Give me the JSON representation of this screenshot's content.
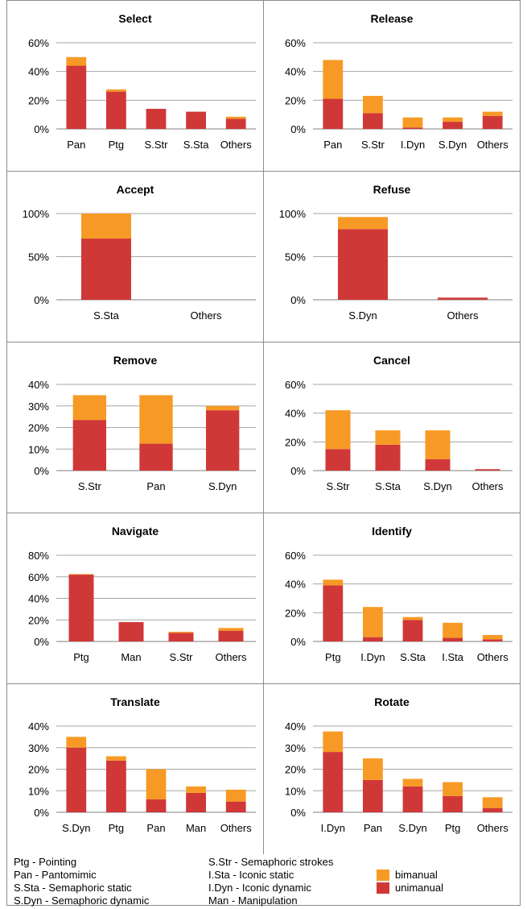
{
  "colors": {
    "unimanual": "#d03838",
    "bimanual": "#f79a25",
    "grid": "#a6a6a6",
    "border": "#8c8c8c"
  },
  "chart_data": [
    {
      "type": "bar",
      "stacked": true,
      "title": "Select",
      "yticks": [
        "0%",
        "20%",
        "40%",
        "60%"
      ],
      "ylim": [
        0,
        60
      ],
      "categories": [
        "Pan",
        "Ptg",
        "S.Str",
        "S.Sta",
        "Others"
      ],
      "series": [
        {
          "name": "unimanual",
          "values": [
            44,
            26,
            14,
            12,
            7
          ]
        },
        {
          "name": "bimanual",
          "values": [
            6,
            1.5,
            0,
            0,
            1.5
          ]
        }
      ]
    },
    {
      "type": "bar",
      "stacked": true,
      "title": "Release",
      "yticks": [
        "0%",
        "20%",
        "40%",
        "60%"
      ],
      "ylim": [
        0,
        60
      ],
      "categories": [
        "Pan",
        "S.Str",
        "I.Dyn",
        "S.Dyn",
        "Others"
      ],
      "series": [
        {
          "name": "unimanual",
          "values": [
            21,
            11,
            1,
            5,
            9
          ]
        },
        {
          "name": "bimanual",
          "values": [
            27,
            12,
            7,
            3,
            3
          ]
        }
      ]
    },
    {
      "type": "bar",
      "stacked": true,
      "title": "Accept",
      "yticks": [
        "0%",
        "50%",
        "100%"
      ],
      "ylim": [
        0,
        100
      ],
      "categories": [
        "S.Sta",
        "Others"
      ],
      "series": [
        {
          "name": "unimanual",
          "values": [
            71,
            0
          ]
        },
        {
          "name": "bimanual",
          "values": [
            29,
            0
          ]
        }
      ]
    },
    {
      "type": "bar",
      "stacked": true,
      "title": "Refuse",
      "yticks": [
        "0%",
        "50%",
        "100%"
      ],
      "ylim": [
        0,
        100
      ],
      "categories": [
        "S.Dyn",
        "Others"
      ],
      "series": [
        {
          "name": "unimanual",
          "values": [
            82,
            2.5
          ]
        },
        {
          "name": "bimanual",
          "values": [
            14,
            0
          ]
        }
      ]
    },
    {
      "type": "bar",
      "stacked": true,
      "title": "Remove",
      "yticks": [
        "0%",
        "10%",
        "20%",
        "30%",
        "40%"
      ],
      "ylim": [
        0,
        40
      ],
      "categories": [
        "S.Str",
        "Pan",
        "S.Dyn"
      ],
      "series": [
        {
          "name": "unimanual",
          "values": [
            23.5,
            12.5,
            28
          ]
        },
        {
          "name": "bimanual",
          "values": [
            11.5,
            22.5,
            2
          ]
        }
      ]
    },
    {
      "type": "bar",
      "stacked": true,
      "title": "Cancel",
      "yticks": [
        "0%",
        "20%",
        "40%",
        "60%"
      ],
      "ylim": [
        0,
        60
      ],
      "categories": [
        "S.Str",
        "S.Sta",
        "S.Dyn",
        "Others"
      ],
      "series": [
        {
          "name": "unimanual",
          "values": [
            15,
            18,
            8,
            1
          ]
        },
        {
          "name": "bimanual",
          "values": [
            27,
            10,
            20,
            0
          ]
        }
      ]
    },
    {
      "type": "bar",
      "stacked": true,
      "title": "Navigate",
      "yticks": [
        "0%",
        "20%",
        "40%",
        "60%",
        "80%"
      ],
      "ylim": [
        0,
        80
      ],
      "categories": [
        "Ptg",
        "Man",
        "S.Str",
        "Others"
      ],
      "series": [
        {
          "name": "unimanual",
          "values": [
            62,
            18,
            8,
            10
          ]
        },
        {
          "name": "bimanual",
          "values": [
            0.5,
            0,
            1,
            2.5
          ]
        }
      ]
    },
    {
      "type": "bar",
      "stacked": true,
      "title": "Identify",
      "yticks": [
        "0%",
        "20%",
        "40%",
        "60%"
      ],
      "ylim": [
        0,
        60
      ],
      "categories": [
        "Ptg",
        "I.Dyn",
        "S.Sta",
        "I.Sta",
        "Others"
      ],
      "series": [
        {
          "name": "unimanual",
          "values": [
            39,
            3,
            15,
            2.5,
            1.5
          ]
        },
        {
          "name": "bimanual",
          "values": [
            4,
            21,
            2,
            10.5,
            3
          ]
        }
      ]
    },
    {
      "type": "bar",
      "stacked": true,
      "title": "Translate",
      "yticks": [
        "0%",
        "10%",
        "20%",
        "30%",
        "40%"
      ],
      "ylim": [
        0,
        40
      ],
      "categories": [
        "S.Dyn",
        "Ptg",
        "Pan",
        "Man",
        "Others"
      ],
      "series": [
        {
          "name": "unimanual",
          "values": [
            30,
            24,
            6,
            9,
            5
          ]
        },
        {
          "name": "bimanual",
          "values": [
            5,
            2,
            14,
            3,
            5.5
          ]
        }
      ]
    },
    {
      "type": "bar",
      "stacked": true,
      "title": "Rotate",
      "yticks": [
        "0%",
        "10%",
        "20%",
        "30%",
        "40%"
      ],
      "ylim": [
        0,
        40
      ],
      "categories": [
        "I.Dyn",
        "Pan",
        "S.Dyn",
        "Ptg",
        "Others"
      ],
      "series": [
        {
          "name": "unimanual",
          "values": [
            28,
            15,
            12,
            7.5,
            2
          ]
        },
        {
          "name": "bimanual",
          "values": [
            9.5,
            10,
            3.5,
            6.5,
            5
          ]
        }
      ]
    }
  ],
  "legend": {
    "abbreviations": [
      "Ptg - Pointing",
      "Pan - Pantomimic",
      "S.Sta - Semaphoric static",
      "S.Dyn - Semaphoric dynamic",
      "S.Str - Semaphoric strokes",
      "I.Sta - Iconic static",
      "I.Dyn - Iconic dynamic",
      "Man - Manipulation"
    ],
    "bimanual": "bimanual",
    "unimanual": "unimanual"
  }
}
